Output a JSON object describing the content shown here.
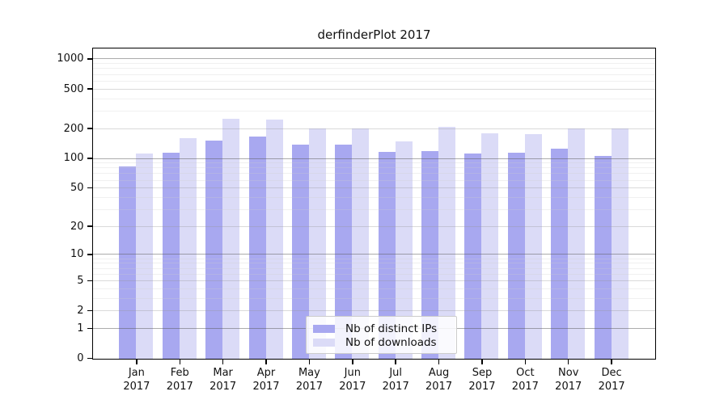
{
  "chart_data": {
    "type": "bar",
    "title": "derfinderPlot 2017",
    "categories": [
      "Jan",
      "Feb",
      "Mar",
      "Apr",
      "May",
      "Jun",
      "Jul",
      "Aug",
      "Sep",
      "Oct",
      "Nov",
      "Dec"
    ],
    "category_year": "2017",
    "series": [
      {
        "name": "Nb of distinct IPs",
        "color": "#a8a8f0",
        "values": [
          84,
          116,
          152,
          168,
          140,
          138,
          117,
          120,
          114,
          115,
          126,
          107
        ]
      },
      {
        "name": "Nb of downloads",
        "color": "#dbdbf7",
        "values": [
          112,
          162,
          255,
          250,
          202,
          202,
          150,
          210,
          180,
          177,
          202,
          201
        ]
      }
    ],
    "xlabel": "",
    "ylabel": "",
    "yscale": "log(x+1)",
    "yticks": [
      0,
      1,
      2,
      5,
      10,
      20,
      50,
      100,
      200,
      500,
      1000
    ],
    "ylim": [
      0,
      1273
    ],
    "grid": true,
    "legend_position": "lower center"
  },
  "colors": {
    "axis": "#000000",
    "grid_major": "rgba(90,90,90,0.5)",
    "grid_mid": "rgba(150,150,150,0.35)",
    "grid_minor": "rgba(205,205,205,0.3)",
    "legend_border": "#cccccc",
    "background": "#ffffff"
  }
}
